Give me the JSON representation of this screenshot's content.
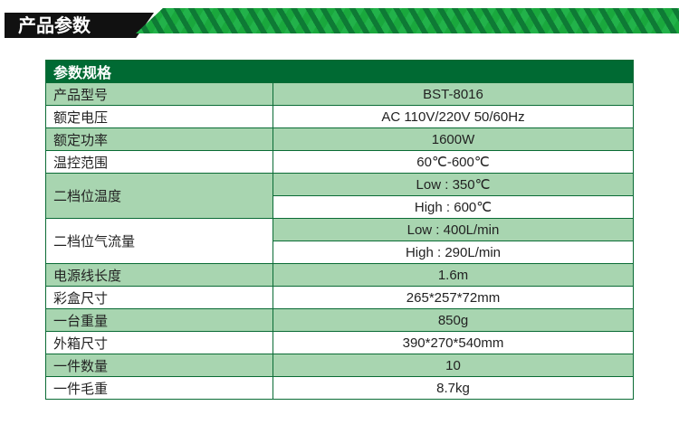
{
  "section_title": "产品参数",
  "table": {
    "header": "参数规格",
    "rows": [
      {
        "label": "产品型号",
        "values": [
          "BST-8016"
        ]
      },
      {
        "label": "额定电压",
        "values": [
          "AC 110V/220V 50/60Hz"
        ]
      },
      {
        "label": "额定功率",
        "values": [
          "1600W"
        ]
      },
      {
        "label": "温控范围",
        "values": [
          "60℃-600℃"
        ]
      },
      {
        "label": "二档位温度",
        "values": [
          "Low : 350℃",
          "High : 600℃"
        ]
      },
      {
        "label": "二档位气流量",
        "values": [
          "Low : 400L/min",
          "High : 290L/min"
        ]
      },
      {
        "label": "电源线长度",
        "values": [
          "1.6m"
        ]
      },
      {
        "label": "彩盒尺寸",
        "values": [
          "265*257*72mm"
        ]
      },
      {
        "label": "一台重量",
        "values": [
          "850g"
        ]
      },
      {
        "label": "外箱尺寸",
        "values": [
          "390*270*540mm"
        ]
      },
      {
        "label": "一件数量",
        "values": [
          "10"
        ]
      },
      {
        "label": "一件毛重",
        "values": [
          "8.7kg"
        ]
      }
    ]
  },
  "colors": {
    "header": "#006a33",
    "row_green": "#a8d5b0",
    "border": "#0a6b35"
  }
}
